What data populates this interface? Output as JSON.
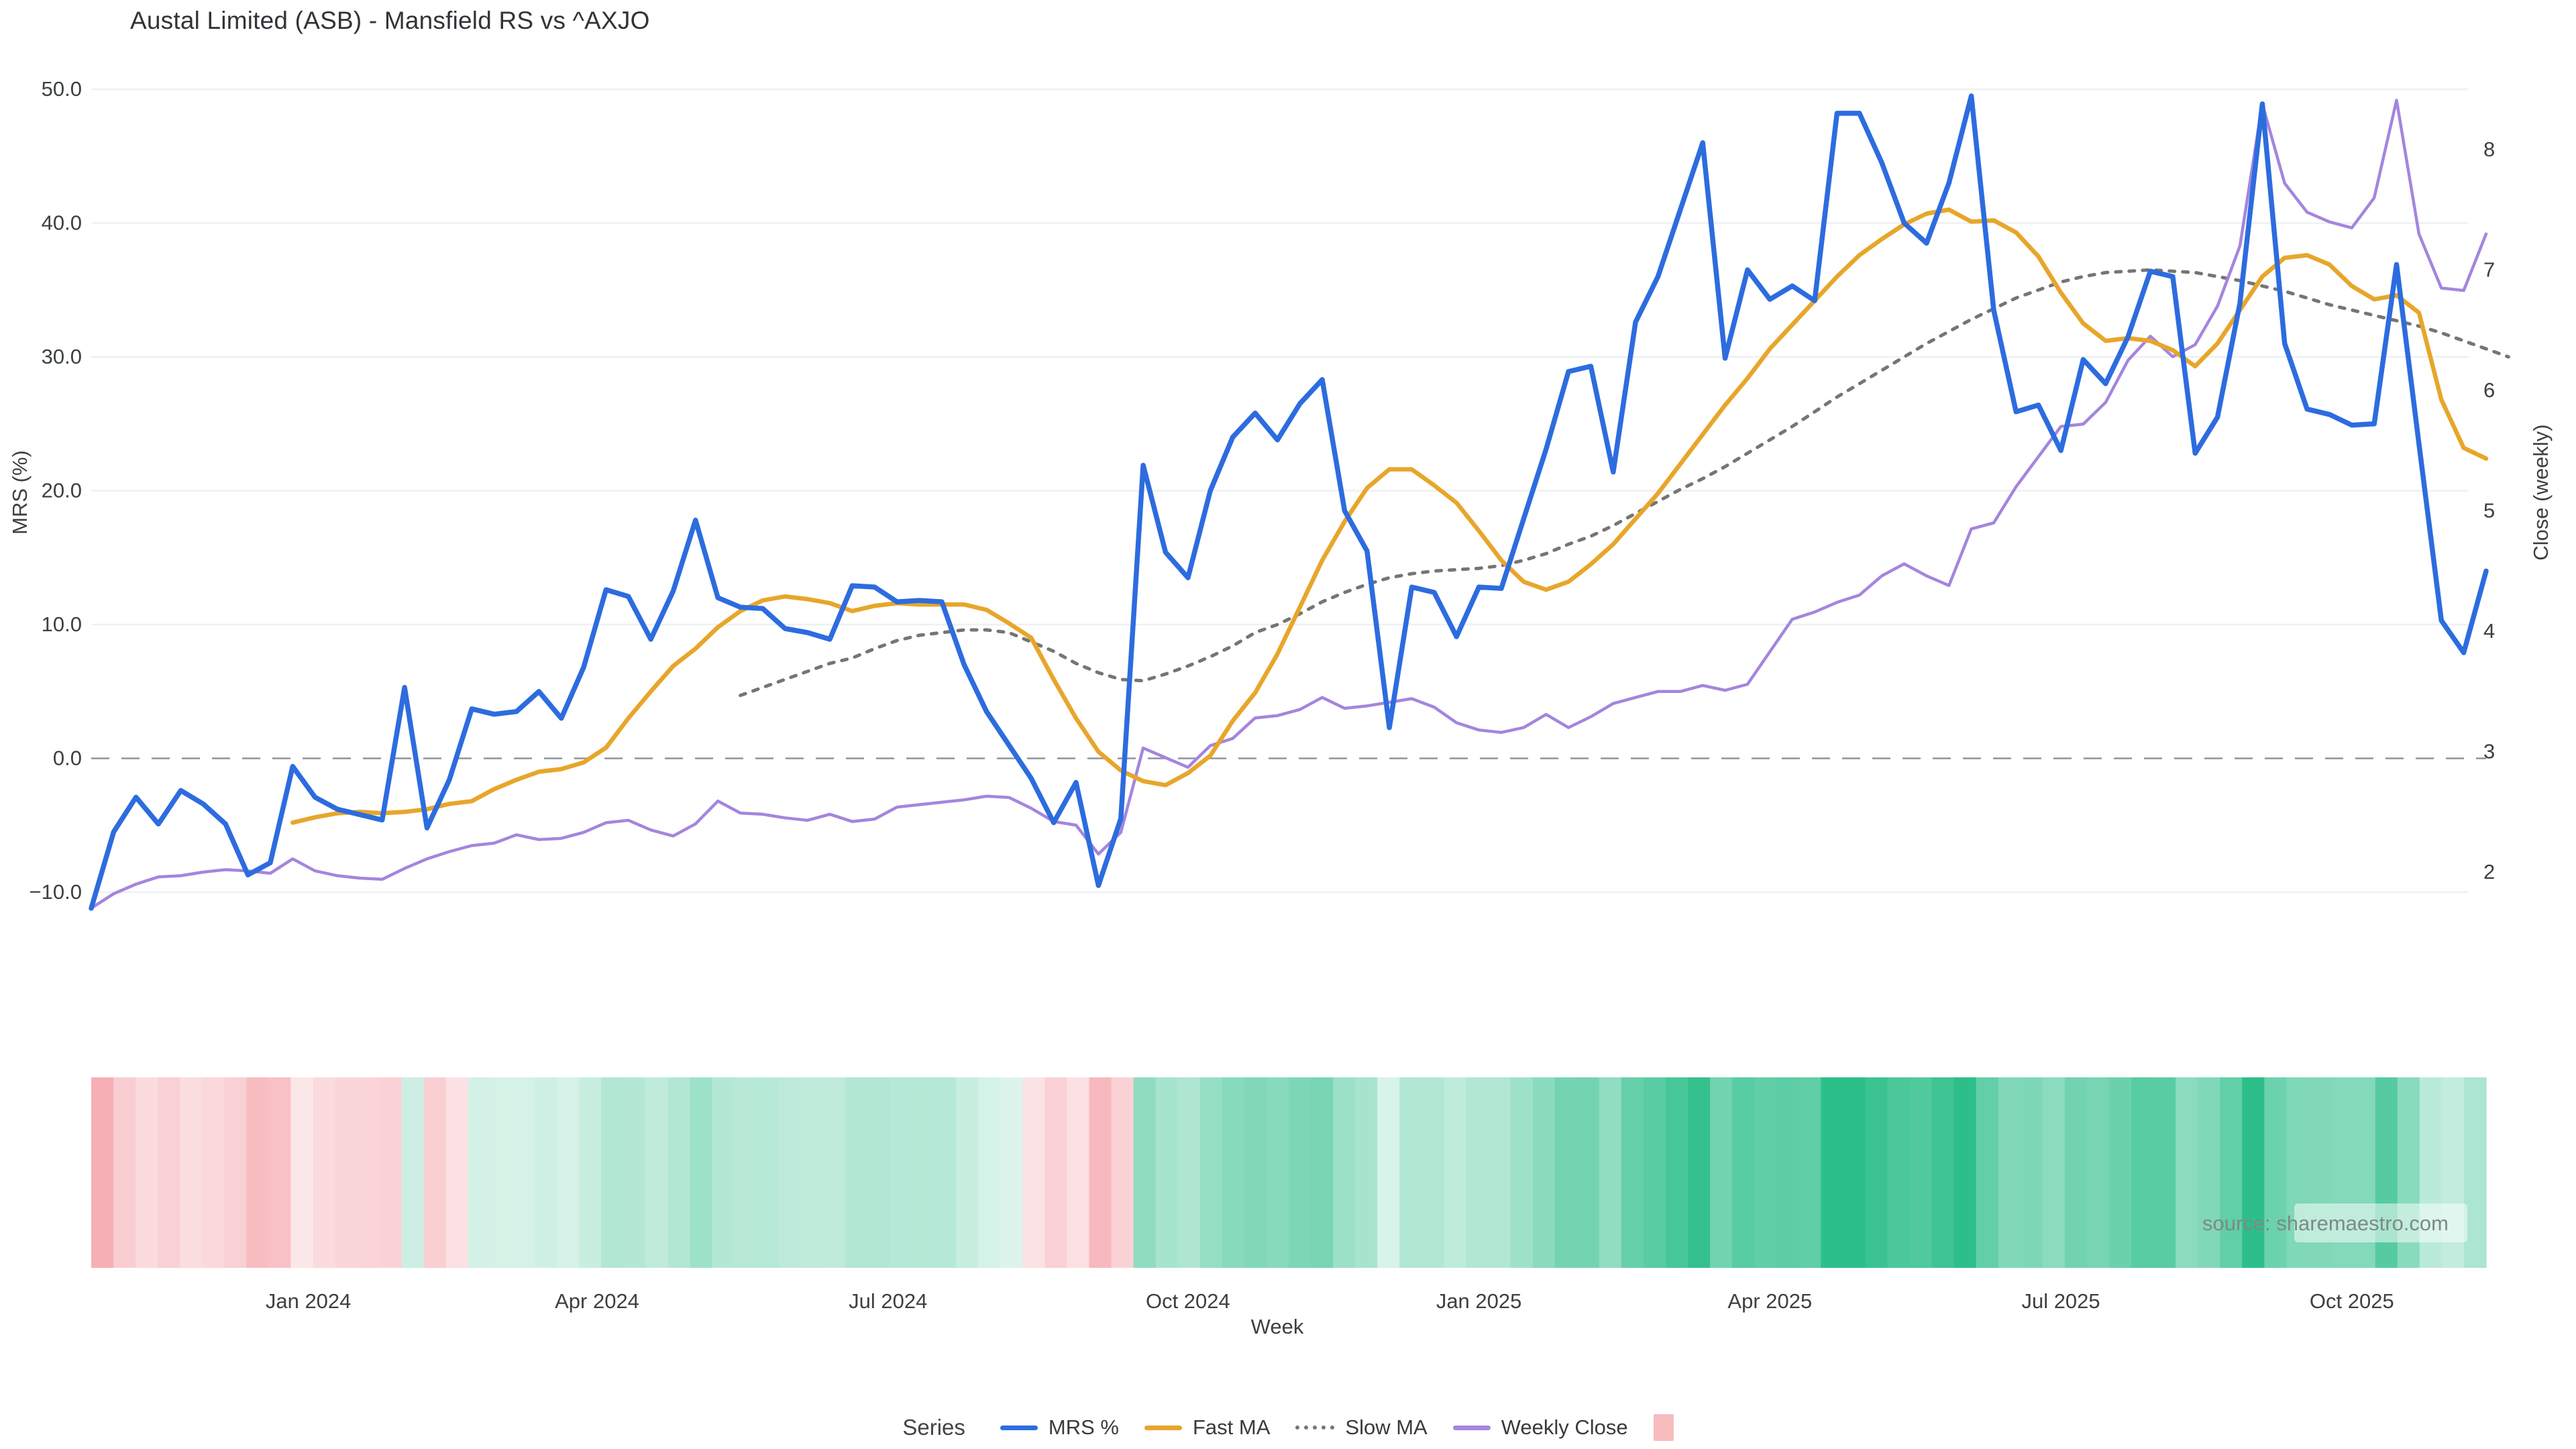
{
  "title": "Austal Limited (ASB) - Mansfield RS vs ^AXJO",
  "axes": {
    "left_title": "MRS (%)",
    "right_title": "Close (weekly)",
    "x_title": "Week",
    "left_tick_labels": [
      "50.0",
      "40.0",
      "30.0",
      "20.0",
      "10.0",
      "0.0",
      "−10.0"
    ],
    "left_tick_values": [
      50,
      40,
      30,
      20,
      10,
      0,
      -10
    ],
    "right_tick_labels": [
      "8",
      "7",
      "6",
      "5",
      "4",
      "3",
      "2"
    ],
    "right_tick_values": [
      8,
      7,
      6,
      5,
      4,
      3,
      2
    ]
  },
  "source_note": "source: sharemaestro.com",
  "legend": {
    "title": "Series",
    "items": [
      {
        "label": "MRS %",
        "swatch": "line",
        "color": "#2d6cdf"
      },
      {
        "label": "Fast MA",
        "swatch": "line",
        "color": "#e7a62b"
      },
      {
        "label": "Slow MA",
        "swatch": "dotted-line",
        "color": "#757575"
      },
      {
        "label": "Weekly Close",
        "swatch": "line",
        "color": "#a485de"
      },
      {
        "label": "",
        "swatch": "square",
        "color": "#f7bcbe"
      }
    ]
  },
  "colors": {
    "mrs_line": "#2d6cdf",
    "fast_ma_line": "#e7a62b",
    "slow_ma_line": "#757575",
    "weekly_close_line": "#a485de",
    "gridline": "#eef0f3",
    "zero_line": "#8f939b",
    "tick_text": "#3c4043",
    "heat_positive_max": "#2dbf8a",
    "heat_negative_max": "#f6acb2",
    "legend_square": "#f7bcbe"
  },
  "chart_data": {
    "type": "line",
    "x_unit": "week",
    "n_weeks": 108,
    "x_ticks": [
      {
        "label": "Jan 2024",
        "week": 9.7
      },
      {
        "label": "Apr 2024",
        "week": 22.6
      },
      {
        "label": "Jul 2024",
        "week": 35.6
      },
      {
        "label": "Oct 2024",
        "week": 49
      },
      {
        "label": "Jan 2025",
        "week": 62
      },
      {
        "label": "Apr 2025",
        "week": 75
      },
      {
        "label": "Jul 2025",
        "week": 88
      },
      {
        "label": "Oct 2025",
        "week": 101
      }
    ],
    "y_left": {
      "label": "MRS (%)",
      "range": [
        -13.7,
        50.8
      ],
      "gridlines": [
        50,
        40,
        30,
        20,
        10,
        -10
      ],
      "zero_line_dashed": true
    },
    "y_right": {
      "label": "Close (weekly)",
      "range": [
        1.58,
        8.97
      ]
    },
    "series": [
      {
        "name": "MRS %",
        "axis": "left",
        "start_week": 0,
        "values": [
          -11.2,
          -5.5,
          -2.9,
          -4.9,
          -2.4,
          -3.4,
          -4.9,
          -8.7,
          -7.8,
          -0.6,
          -2.9,
          -3.8,
          -4.2,
          -4.6,
          5.3,
          -5.2,
          -1.6,
          3.7,
          3.3,
          3.5,
          5.0,
          3.0,
          6.8,
          12.6,
          12.1,
          8.9,
          12.5,
          17.8,
          12.0,
          11.3,
          11.2,
          9.7,
          9.4,
          8.9,
          12.9,
          12.8,
          11.7,
          11.8,
          11.7,
          7.0,
          3.5,
          1.0,
          -1.5,
          -4.8,
          -1.8,
          -9.5,
          -4.5,
          21.9,
          15.4,
          13.5,
          20.0,
          24.0,
          25.8,
          23.8,
          26.5,
          28.3,
          18.5,
          15.5,
          2.3,
          12.8,
          12.4,
          9.1,
          12.8,
          12.7,
          17.9,
          23.1,
          28.9,
          29.3,
          21.4,
          32.6,
          36.0,
          41.0,
          46.0,
          29.9,
          36.5,
          34.3,
          35.3,
          34.2,
          48.2,
          48.2,
          44.5,
          40.0,
          38.5,
          43.0,
          49.5,
          33.5,
          25.9,
          26.4,
          23.0,
          29.8,
          28.0,
          31.5,
          36.4,
          36.0,
          22.8,
          25.5,
          34.0,
          48.9,
          31.0,
          26.1,
          25.7,
          24.9,
          25.0,
          36.9,
          23.5,
          10.3,
          7.9,
          14.0
        ]
      },
      {
        "name": "Fast MA",
        "axis": "left",
        "start_week": 9,
        "values": [
          -4.8,
          -4.4,
          -4.1,
          -4.0,
          -4.1,
          -4.0,
          -3.8,
          -3.4,
          -3.2,
          -2.3,
          -1.6,
          -1.0,
          -0.8,
          -0.3,
          0.8,
          3.0,
          5.0,
          6.9,
          8.2,
          9.8,
          11.0,
          11.8,
          12.1,
          11.9,
          11.6,
          11.0,
          11.4,
          11.6,
          11.5,
          11.5,
          11.5,
          11.1,
          10.1,
          9.0,
          5.9,
          3.0,
          0.5,
          -0.9,
          -1.7,
          -2.0,
          -1.1,
          0.2,
          2.8,
          4.9,
          7.8,
          11.3,
          14.8,
          17.7,
          20.2,
          21.6,
          21.6,
          20.4,
          19.1,
          17.0,
          14.8,
          13.2,
          12.6,
          13.2,
          14.5,
          16.0,
          17.9,
          19.8,
          22.0,
          24.2,
          26.4,
          28.4,
          30.6,
          32.4,
          34.2,
          36.0,
          37.6,
          38.8,
          39.9,
          40.7,
          41.0,
          40.1,
          40.2,
          39.3,
          37.5,
          34.8,
          32.5,
          31.2,
          31.4,
          31.2,
          30.5,
          29.3,
          31.0,
          33.5,
          36.0,
          37.4,
          37.6,
          36.9,
          35.3,
          34.3,
          34.6,
          33.3,
          26.8,
          23.2,
          22.4
        ]
      },
      {
        "name": "Slow MA",
        "axis": "left",
        "start_week": 29,
        "values": [
          4.7,
          5.3,
          5.9,
          6.5,
          7.1,
          7.5,
          8.2,
          8.8,
          9.2,
          9.4,
          9.6,
          9.6,
          9.4,
          8.7,
          8.0,
          7.1,
          6.4,
          5.9,
          5.8,
          6.3,
          6.9,
          7.6,
          8.4,
          9.4,
          10.0,
          10.8,
          11.7,
          12.4,
          13.0,
          13.5,
          13.8,
          14.0,
          14.1,
          14.2,
          14.4,
          14.8,
          15.3,
          16.0,
          16.6,
          17.4,
          18.3,
          19.2,
          20.1,
          20.9,
          21.8,
          22.8,
          23.8,
          24.8,
          25.9,
          27.0,
          28.0,
          29.0,
          30.0,
          31.0,
          31.9,
          32.8,
          33.6,
          34.4,
          35.0,
          35.6,
          36.0,
          36.3,
          36.4,
          36.5,
          36.4,
          36.3,
          36.0,
          35.7,
          35.3,
          34.9,
          34.4,
          33.9,
          33.5,
          33.1,
          32.7,
          32.3,
          31.8,
          31.2,
          30.6,
          30.0
        ]
      },
      {
        "name": "Weekly Close",
        "axis": "right",
        "start_week": 0,
        "values": [
          1.7,
          1.82,
          1.9,
          1.96,
          1.97,
          2.0,
          2.02,
          2.01,
          1.99,
          2.11,
          2.01,
          1.97,
          1.95,
          1.94,
          2.03,
          2.11,
          2.17,
          2.22,
          2.24,
          2.31,
          2.27,
          2.28,
          2.33,
          2.41,
          2.43,
          2.35,
          2.3,
          2.4,
          2.59,
          2.49,
          2.48,
          2.45,
          2.43,
          2.48,
          2.42,
          2.44,
          2.54,
          2.56,
          2.58,
          2.6,
          2.63,
          2.62,
          2.53,
          2.42,
          2.39,
          2.15,
          2.33,
          3.03,
          2.95,
          2.87,
          3.05,
          3.11,
          3.28,
          3.3,
          3.35,
          3.45,
          3.36,
          3.38,
          3.41,
          3.44,
          3.37,
          3.24,
          3.18,
          3.16,
          3.2,
          3.31,
          3.2,
          3.29,
          3.4,
          3.45,
          3.5,
          3.5,
          3.55,
          3.51,
          3.56,
          3.83,
          4.1,
          4.16,
          4.24,
          4.3,
          4.46,
          4.56,
          4.46,
          4.38,
          4.85,
          4.9,
          5.2,
          5.45,
          5.7,
          5.72,
          5.9,
          6.25,
          6.45,
          6.28,
          6.38,
          6.7,
          7.2,
          8.38,
          7.72,
          7.48,
          7.4,
          7.35,
          7.6,
          8.41,
          7.3,
          6.85,
          6.83,
          7.3
        ]
      }
    ],
    "heatmap_strip": {
      "description": "weekly cells colored from MRS % values: negative = pink, positive = green, deeper color = larger magnitude",
      "source_series": "MRS %",
      "negative_saturation_at": -12,
      "positive_saturation_at": 48
    },
    "legend_position": "bottom-center",
    "grid_on": true
  }
}
